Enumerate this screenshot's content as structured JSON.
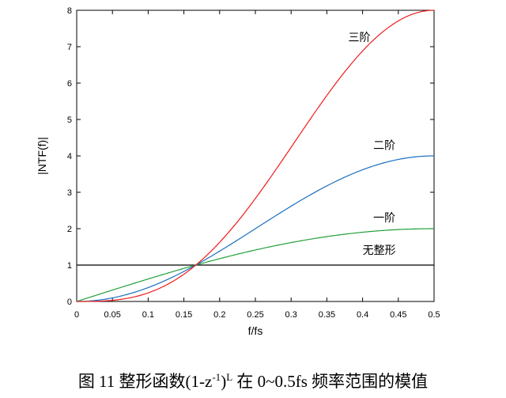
{
  "chart_data": {
    "type": "line",
    "xlabel": "f/fs",
    "ylabel": "|NTF(f)|",
    "xlim": [
      0,
      0.5
    ],
    "ylim": [
      0,
      8
    ],
    "x_ticks": [
      "0",
      "0.05",
      "0.1",
      "0.15",
      "0.2",
      "0.25",
      "0.3",
      "0.35",
      "0.4",
      "0.45",
      "0.5"
    ],
    "y_ticks": [
      "0",
      "1",
      "2",
      "3",
      "4",
      "5",
      "6",
      "7",
      "8"
    ],
    "x": [
      0,
      0.05,
      0.1,
      0.1667,
      0.2,
      0.25,
      0.3,
      0.35,
      0.4,
      0.45,
      0.5
    ],
    "series": [
      {
        "name": "无整形",
        "order": 0,
        "color": "#000000",
        "values": [
          1,
          1,
          1,
          1,
          1,
          1,
          1,
          1,
          1,
          1,
          1
        ]
      },
      {
        "name": "一阶",
        "order": 1,
        "color": "#22a03a",
        "values": [
          0,
          0.31,
          0.62,
          1.0,
          1.18,
          1.41,
          1.62,
          1.78,
          1.9,
          1.98,
          2.0
        ]
      },
      {
        "name": "二阶",
        "order": 2,
        "color": "#1a6fc0",
        "values": [
          0,
          0.1,
          0.38,
          1.0,
          1.38,
          1.99,
          2.62,
          3.18,
          3.62,
          3.9,
          4.0
        ]
      },
      {
        "name": "三阶",
        "order": 3,
        "color": "#ee1c1c",
        "values": [
          0,
          0.03,
          0.24,
          1.0,
          1.62,
          2.81,
          4.24,
          5.66,
          6.85,
          7.71,
          8.0
        ]
      }
    ],
    "grid": false
  },
  "caption": {
    "prefix": "图  11  整形函数(1-z",
    "exponent": "-1",
    "paren_close": ")",
    "power": "L",
    "suffix": " 在 0~0.5fs 频率范围的模值"
  }
}
